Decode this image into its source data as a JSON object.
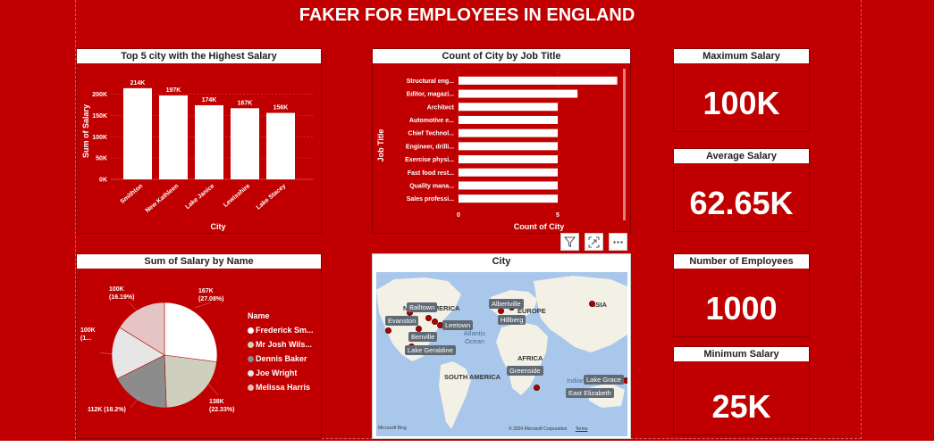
{
  "report_title": "FAKER FOR EMPLOYEES IN ENGLAND",
  "visual_header_icons": [
    "filter-icon",
    "focus-mode-icon",
    "more-options-icon"
  ],
  "cards": [
    {
      "title": "Maximum Salary",
      "value": "100K"
    },
    {
      "title": "Average Salary",
      "value": "62.65K"
    },
    {
      "title": "Number of Employees",
      "value": "1000"
    },
    {
      "title": "Minimum Salary",
      "value": "25K"
    }
  ],
  "bar_chart": {
    "title": "Top 5 city with the Highest Salary",
    "xlabel": "City",
    "ylabel": "Sum of Salary",
    "ticks": [
      "0K",
      "50K",
      "100K",
      "150K",
      "200K"
    ],
    "data_labels": [
      "214K",
      "197K",
      "174K",
      "167K",
      "156K"
    ]
  },
  "hbar_chart": {
    "title": "Count of City by Job Title",
    "xlabel": "Count of City",
    "ylabel": "Job Title",
    "ticks": [
      "0",
      "5"
    ]
  },
  "pie_chart": {
    "title": "Sum of Salary by Name",
    "legend_title": "Name",
    "labels": [
      "167K\n(27.08%)",
      "138K\n(22.33%)",
      "112K (18.2%)",
      "100K\n(1...",
      "100K\n(16.19%)"
    ]
  },
  "map": {
    "title": "City",
    "continents": [
      "NORTH AMERICA",
      "EUROPE",
      "ASIA",
      "AFRICA",
      "SOUTH AMERICA"
    ],
    "ocean_labels": [
      "Atlantic Ocean",
      "Indian"
    ],
    "city_labels": [
      "Balltown",
      "Evanston",
      "Leetown",
      "Benville",
      "Lake Geraldine",
      "Albertville",
      "Hillberg",
      "Greenside",
      "Lake Grace",
      "East Elizabeth"
    ],
    "logo_text": "Microsoft Bing",
    "attribution": "© 2024 Microsoft Corporation",
    "terms": "Terms"
  },
  "chart_data": [
    {
      "type": "bar",
      "title": "Top 5 city with the Highest Salary",
      "xlabel": "City",
      "ylabel": "Sum of Salary",
      "categories": [
        "Smithton",
        "New Kathleen",
        "Lake Janice",
        "Lewisshire",
        "Lake Stacey"
      ],
      "values": [
        214000,
        197000,
        174000,
        167000,
        156000
      ],
      "ylim": [
        0,
        220000
      ],
      "colors": {
        "bar": "#ffffff",
        "background": "#c00000"
      }
    },
    {
      "type": "bar",
      "orientation": "horizontal",
      "title": "Count of City by Job Title",
      "xlabel": "Count of City",
      "ylabel": "Job Title",
      "categories": [
        "Structural eng...",
        "Editor, magazi...",
        "Architect",
        "Automotive e...",
        "Chief Technol...",
        "Engineer, drilli...",
        "Exercise physi...",
        "Fast food rest...",
        "Quality mana...",
        "Sales professi..."
      ],
      "values": [
        8,
        6,
        5,
        5,
        5,
        5,
        5,
        5,
        5,
        5
      ],
      "xlim": [
        0,
        8.2
      ]
    },
    {
      "type": "pie",
      "title": "Sum of Salary by Name",
      "categories": [
        "Frederick Sm...",
        "Mr Josh Wils...",
        "Dennis Baker",
        "Joe Wright",
        "Melissa Harris"
      ],
      "values": [
        167000,
        138000,
        112000,
        100000,
        100000
      ],
      "percentages": [
        27.08,
        22.33,
        18.2,
        16.2,
        16.19
      ],
      "colors": [
        "#ffffff",
        "#cfcfc0",
        "#8c8c8c",
        "#e6e6e6",
        "#e4c4c4"
      ]
    }
  ]
}
